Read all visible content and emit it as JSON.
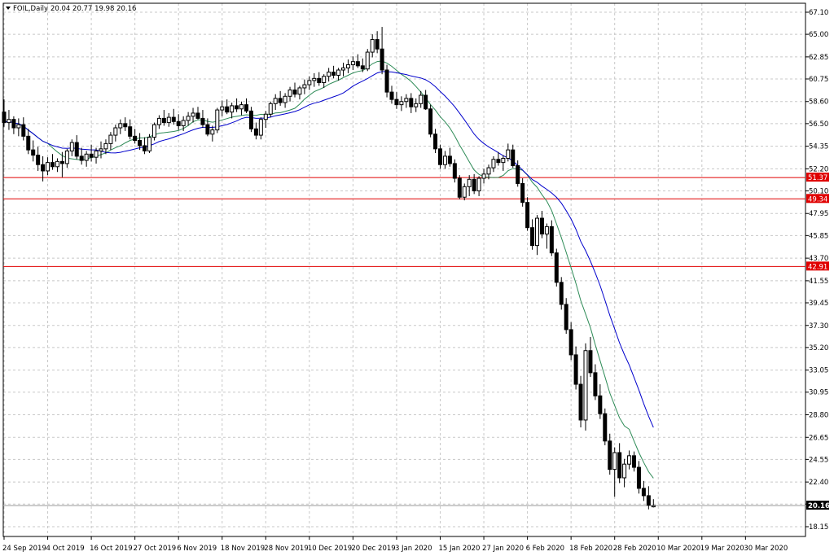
{
  "header": {
    "symbol_timeframe": "FOIL,Daily",
    "ohlc": "20.04 20.77 19.98 20.16"
  },
  "colors": {
    "background": "#ffffff",
    "grid": "#c8c8c8",
    "candle": "#000000",
    "ma_fast": "#2e8b57",
    "ma_slow": "#0000cc",
    "level_line": "#e00000",
    "level_label": "#e00000",
    "current_price_label": "#000000"
  },
  "chart_data": {
    "type": "candlestick",
    "y_range": [
      18.15,
      67.1
    ],
    "y_ticks": [
      "67.10",
      "65.00",
      "62.85",
      "60.75",
      "58.60",
      "56.50",
      "54.35",
      "52.20",
      "50.10",
      "47.95",
      "45.85",
      "43.70",
      "41.55",
      "39.45",
      "37.30",
      "35.20",
      "33.05",
      "30.95",
      "28.80",
      "26.65",
      "24.55",
      "22.40",
      "20.30",
      "18.15"
    ],
    "x_labels": [
      "24 Sep 2019",
      "4 Oct 2019",
      "16 Oct 2019",
      "27 Oct 2019",
      "6 Nov 2019",
      "18 Nov 2019",
      "28 Nov 2019",
      "10 Dec 2019",
      "20 Dec 2019",
      "3 Jan 2020",
      "15 Jan 2020",
      "27 Jan 2020",
      "6 Feb 2020",
      "18 Feb 2020",
      "28 Feb 2020",
      "10 Mar 2020",
      "19 Mar 2020",
      "30 Mar 2020"
    ],
    "x_label_index": [
      0,
      9,
      18,
      27,
      36,
      45,
      54,
      63,
      72,
      81,
      90,
      99,
      108,
      117,
      126,
      135,
      144,
      153
    ],
    "current_price": "20.16",
    "levels": [
      {
        "value": 51.37,
        "label": "51.37"
      },
      {
        "value": 49.34,
        "label": "49.34"
      },
      {
        "value": 42.91,
        "label": "42.91"
      }
    ],
    "candles": [
      [
        57.6,
        58.8,
        56.2,
        56.6
      ],
      [
        56.6,
        57.8,
        55.9,
        56.9
      ],
      [
        56.9,
        57.2,
        55.5,
        56.1
      ],
      [
        56.1,
        57.0,
        55.3,
        56.4
      ],
      [
        56.4,
        57.1,
        54.9,
        55.3
      ],
      [
        55.3,
        56.0,
        53.6,
        54.0
      ],
      [
        54.0,
        54.9,
        52.9,
        53.5
      ],
      [
        53.5,
        54.3,
        52.0,
        52.6
      ],
      [
        52.6,
        53.4,
        51.0,
        52.0
      ],
      [
        52.0,
        53.3,
        51.6,
        52.8
      ],
      [
        52.8,
        53.6,
        52.1,
        52.4
      ],
      [
        52.4,
        53.2,
        51.9,
        52.9
      ],
      [
        52.9,
        53.8,
        51.4,
        52.7
      ],
      [
        52.7,
        54.1,
        52.3,
        53.9
      ],
      [
        53.9,
        55.0,
        53.4,
        54.7
      ],
      [
        54.7,
        55.4,
        53.1,
        53.4
      ],
      [
        53.4,
        54.2,
        52.6,
        53.0
      ],
      [
        53.0,
        53.9,
        52.4,
        53.6
      ],
      [
        53.6,
        54.5,
        52.9,
        53.3
      ],
      [
        53.3,
        54.2,
        52.7,
        53.9
      ],
      [
        53.9,
        54.8,
        53.2,
        54.1
      ],
      [
        54.1,
        55.0,
        53.6,
        54.6
      ],
      [
        54.6,
        55.7,
        54.0,
        55.4
      ],
      [
        55.4,
        56.4,
        54.8,
        56.1
      ],
      [
        56.1,
        56.9,
        55.5,
        56.5
      ],
      [
        56.5,
        57.1,
        55.8,
        56.2
      ],
      [
        56.2,
        56.9,
        55.0,
        55.3
      ],
      [
        55.3,
        56.0,
        54.6,
        54.9
      ],
      [
        54.9,
        55.6,
        54.0,
        54.4
      ],
      [
        54.4,
        55.2,
        53.6,
        53.9
      ],
      [
        53.9,
        55.5,
        53.7,
        55.2
      ],
      [
        55.2,
        56.6,
        54.9,
        56.4
      ],
      [
        56.4,
        57.3,
        56.0,
        57.0
      ],
      [
        57.0,
        57.8,
        56.3,
        56.6
      ],
      [
        56.6,
        57.5,
        56.2,
        57.1
      ],
      [
        57.1,
        57.9,
        56.4,
        56.7
      ],
      [
        56.7,
        57.4,
        55.9,
        56.3
      ],
      [
        56.3,
        57.2,
        55.8,
        56.8
      ],
      [
        56.8,
        57.6,
        56.3,
        57.2
      ],
      [
        57.2,
        58.0,
        56.6,
        57.5
      ],
      [
        57.5,
        58.1,
        56.9,
        57.0
      ],
      [
        57.0,
        57.8,
        56.1,
        56.4
      ],
      [
        56.4,
        57.0,
        55.3,
        55.5
      ],
      [
        55.5,
        56.3,
        54.8,
        55.9
      ],
      [
        55.9,
        58.0,
        55.6,
        57.8
      ],
      [
        57.8,
        58.7,
        57.2,
        58.1
      ],
      [
        58.1,
        58.8,
        57.4,
        57.6
      ],
      [
        57.6,
        58.5,
        57.0,
        58.2
      ],
      [
        58.2,
        58.9,
        57.6,
        57.9
      ],
      [
        57.9,
        58.6,
        57.3,
        58.3
      ],
      [
        58.3,
        58.9,
        57.5,
        57.7
      ],
      [
        57.7,
        58.1,
        55.7,
        56.0
      ],
      [
        56.0,
        56.6,
        55.0,
        55.4
      ],
      [
        55.4,
        57.1,
        55.0,
        56.9
      ],
      [
        56.9,
        57.7,
        56.1,
        57.4
      ],
      [
        57.4,
        58.6,
        57.1,
        58.4
      ],
      [
        58.4,
        59.3,
        57.8,
        58.9
      ],
      [
        58.9,
        59.6,
        58.2,
        58.5
      ],
      [
        58.5,
        59.4,
        58.0,
        59.1
      ],
      [
        59.1,
        60.0,
        58.6,
        59.7
      ],
      [
        59.7,
        60.4,
        59.0,
        59.3
      ],
      [
        59.3,
        60.1,
        58.8,
        59.9
      ],
      [
        59.9,
        60.7,
        59.3,
        60.2
      ],
      [
        60.2,
        61.0,
        59.7,
        60.6
      ],
      [
        60.6,
        61.3,
        60.0,
        60.8
      ],
      [
        60.8,
        61.4,
        60.1,
        60.4
      ],
      [
        60.4,
        61.2,
        59.9,
        61.0
      ],
      [
        61.0,
        61.8,
        60.5,
        61.4
      ],
      [
        61.4,
        62.0,
        60.8,
        61.1
      ],
      [
        61.1,
        61.8,
        60.6,
        61.6
      ],
      [
        61.6,
        62.3,
        61.0,
        61.8
      ],
      [
        61.8,
        62.6,
        61.3,
        62.1
      ],
      [
        62.1,
        62.9,
        61.6,
        62.4
      ],
      [
        62.4,
        63.1,
        61.8,
        62.0
      ],
      [
        62.0,
        62.7,
        61.4,
        61.7
      ],
      [
        61.7,
        63.6,
        61.5,
        63.3
      ],
      [
        63.3,
        65.0,
        62.8,
        64.5
      ],
      [
        64.5,
        65.3,
        63.2,
        63.6
      ],
      [
        63.6,
        65.7,
        61.2,
        61.6
      ],
      [
        61.6,
        62.1,
        59.0,
        59.5
      ],
      [
        59.5,
        60.1,
        58.4,
        58.8
      ],
      [
        58.8,
        59.5,
        57.9,
        58.3
      ],
      [
        58.3,
        59.1,
        57.7,
        58.6
      ],
      [
        58.6,
        59.3,
        58.0,
        58.9
      ],
      [
        58.9,
        59.4,
        57.5,
        58.1
      ],
      [
        58.1,
        58.9,
        57.6,
        58.4
      ],
      [
        58.4,
        59.6,
        58.0,
        59.2
      ],
      [
        59.2,
        59.7,
        57.8,
        57.9
      ],
      [
        57.9,
        58.3,
        55.2,
        55.5
      ],
      [
        55.5,
        56.0,
        53.7,
        54.1
      ],
      [
        54.1,
        54.5,
        52.2,
        52.6
      ],
      [
        52.6,
        53.9,
        52.2,
        53.4
      ],
      [
        53.4,
        54.2,
        52.4,
        52.7
      ],
      [
        52.7,
        53.1,
        50.9,
        51.3
      ],
      [
        51.3,
        51.6,
        49.3,
        49.5
      ],
      [
        49.5,
        50.8,
        49.2,
        50.5
      ],
      [
        50.5,
        51.6,
        49.6,
        51.2
      ],
      [
        51.2,
        51.7,
        49.8,
        50.1
      ],
      [
        50.1,
        51.5,
        49.6,
        51.3
      ],
      [
        51.3,
        52.2,
        50.8,
        51.7
      ],
      [
        51.7,
        52.6,
        51.2,
        52.3
      ],
      [
        52.3,
        53.4,
        51.9,
        53.1
      ],
      [
        53.1,
        53.8,
        52.5,
        52.8
      ],
      [
        52.8,
        53.5,
        52.0,
        53.2
      ],
      [
        53.2,
        54.6,
        52.9,
        54.0
      ],
      [
        54.0,
        54.5,
        52.3,
        52.5
      ],
      [
        52.5,
        53.0,
        50.5,
        50.8
      ],
      [
        50.8,
        51.3,
        48.6,
        49.0
      ],
      [
        49.0,
        49.5,
        46.3,
        46.6
      ],
      [
        46.6,
        47.4,
        44.5,
        44.9
      ],
      [
        44.9,
        47.8,
        44.0,
        47.5
      ],
      [
        47.5,
        48.2,
        45.6,
        46.0
      ],
      [
        46.0,
        47.0,
        44.6,
        46.7
      ],
      [
        46.7,
        47.3,
        43.9,
        44.2
      ],
      [
        44.2,
        44.6,
        41.0,
        41.4
      ],
      [
        41.4,
        41.9,
        38.8,
        39.3
      ],
      [
        39.3,
        39.9,
        36.5,
        36.9
      ],
      [
        36.9,
        37.6,
        34.0,
        34.5
      ],
      [
        34.5,
        35.3,
        31.2,
        31.7
      ],
      [
        31.7,
        32.5,
        27.6,
        28.3
      ],
      [
        28.3,
        35.6,
        27.3,
        34.9
      ],
      [
        34.9,
        36.2,
        32.4,
        32.8
      ],
      [
        32.8,
        33.6,
        30.2,
        30.6
      ],
      [
        30.6,
        31.7,
        28.4,
        28.9
      ],
      [
        28.9,
        29.4,
        25.9,
        26.3
      ],
      [
        26.3,
        27.0,
        23.1,
        23.6
      ],
      [
        23.6,
        25.7,
        21.0,
        25.2
      ],
      [
        25.2,
        26.1,
        22.3,
        22.8
      ],
      [
        22.8,
        24.6,
        21.9,
        24.1
      ],
      [
        24.1,
        25.4,
        23.6,
        24.9
      ],
      [
        24.9,
        25.3,
        23.4,
        23.8
      ],
      [
        23.8,
        24.4,
        21.3,
        21.8
      ],
      [
        21.8,
        22.5,
        20.6,
        21.1
      ],
      [
        21.1,
        22.0,
        19.8,
        20.2
      ],
      [
        20.04,
        20.77,
        19.98,
        20.16
      ]
    ]
  }
}
